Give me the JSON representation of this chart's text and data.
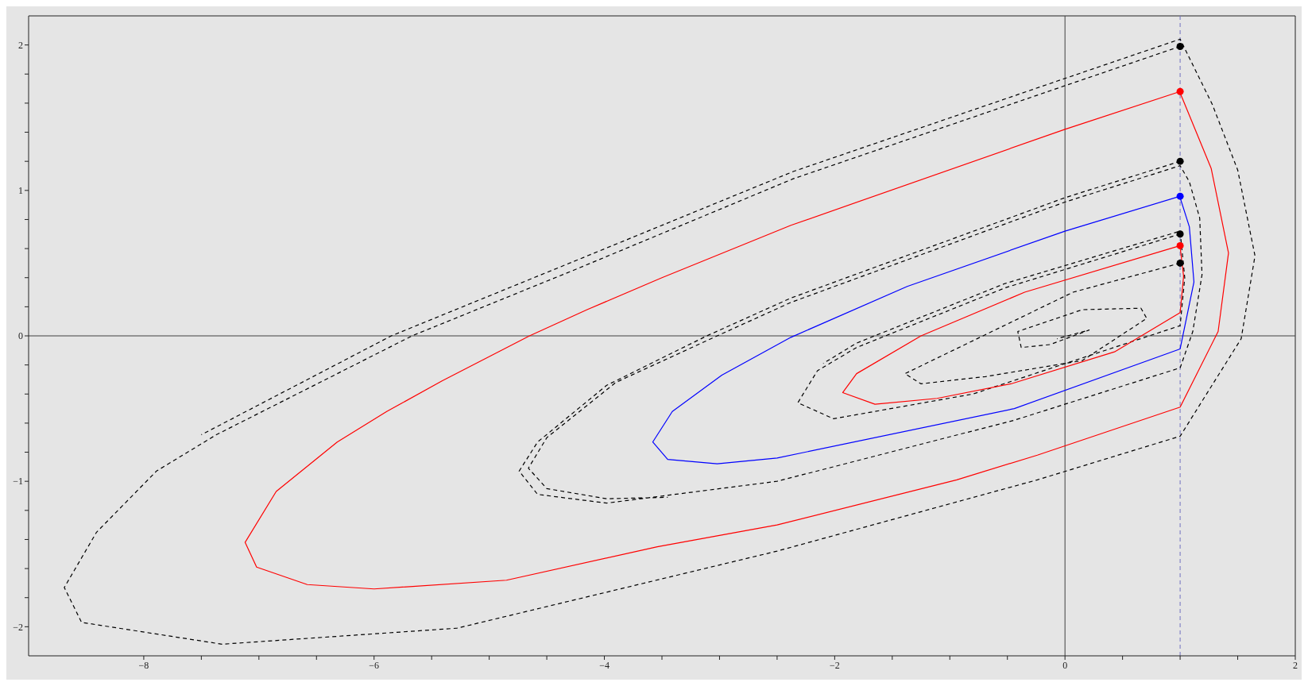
{
  "chart_data": {
    "type": "line",
    "xlim": [
      -9,
      2
    ],
    "ylim": [
      -2.2,
      2.2
    ],
    "xticks": [
      {
        "value": -8,
        "label": "−8"
      },
      {
        "value": -7.5,
        "label": null
      },
      {
        "value": -7,
        "label": null
      },
      {
        "value": -6.5,
        "label": null
      },
      {
        "value": -6,
        "label": "−6"
      },
      {
        "value": -5.5,
        "label": null
      },
      {
        "value": -5,
        "label": null
      },
      {
        "value": -4.5,
        "label": null
      },
      {
        "value": -4,
        "label": "−4"
      },
      {
        "value": -3.5,
        "label": null
      },
      {
        "value": -3,
        "label": null
      },
      {
        "value": -2.5,
        "label": null
      },
      {
        "value": -2,
        "label": "−2"
      },
      {
        "value": -1.5,
        "label": null
      },
      {
        "value": -1,
        "label": null
      },
      {
        "value": -0.5,
        "label": null
      },
      0,
      {
        "value": 0.5,
        "label": null
      },
      {
        "value": 1,
        "label": null
      },
      {
        "value": 1.5,
        "label": null
      },
      2
    ],
    "yticks": [
      {
        "value": -2,
        "label": "−2"
      },
      {
        "value": -1.8,
        "label": null
      },
      {
        "value": -1.6,
        "label": null
      },
      {
        "value": -1.4,
        "label": null
      },
      {
        "value": -1.2,
        "label": null
      },
      {
        "value": -1,
        "label": "−1"
      },
      {
        "value": -0.8,
        "label": null
      },
      {
        "value": -0.6,
        "label": null
      },
      {
        "value": -0.4,
        "label": null
      },
      {
        "value": -0.2,
        "label": null
      },
      0,
      {
        "value": 0.2,
        "label": null
      },
      {
        "value": 0.4,
        "label": null
      },
      {
        "value": 0.6,
        "label": null
      },
      {
        "value": 0.8,
        "label": null
      },
      1,
      {
        "value": 1.2,
        "label": null
      },
      {
        "value": 1.4,
        "label": null
      },
      {
        "value": 1.6,
        "label": null
      },
      {
        "value": 1.8,
        "label": null
      },
      2
    ],
    "grid": false,
    "legend": false,
    "ref_lines": [
      {
        "axis": "x",
        "value": 0,
        "color": "#404040",
        "line_style": "solid"
      },
      {
        "axis": "y",
        "value": 0,
        "color": "#404040",
        "line_style": "solid"
      },
      {
        "axis": "x",
        "value": 1,
        "color": "#7070c0",
        "line_style": "dashed"
      }
    ],
    "series": [
      {
        "color": "#000000",
        "line_style": "dashed",
        "x": [
          1,
          0,
          -2.36,
          -4.24,
          -5.67,
          -7.37,
          -7.89,
          -8.41,
          -8.69,
          -8.54,
          -7.32,
          -5.28,
          -2.5,
          -0.24,
          1,
          1.53,
          1.65,
          1.5,
          1.28,
          1,
          0,
          -2.36,
          -4.24,
          -5.85,
          -7.5
        ],
        "values": [
          1.99,
          1.72,
          1.08,
          0.46,
          0,
          -0.68,
          -0.93,
          -1.35,
          -1.73,
          -1.97,
          -2.12,
          -2.01,
          -1.48,
          -0.99,
          -0.69,
          -0.02,
          0.55,
          1.14,
          1.59,
          2.04,
          1.77,
          1.13,
          0.52,
          0,
          -0.68
        ]
      },
      {
        "color": "#ff0000",
        "line_style": "solid",
        "x": [
          1,
          0,
          -2.38,
          -3.5,
          -4.15,
          -4.65,
          -5.41,
          -5.89,
          -6.32,
          -6.85,
          -7.12,
          -7.02,
          -6.58,
          -6,
          -4.85,
          -3.54,
          -2.5,
          -0.94,
          -0.24,
          1,
          1.33,
          1.42,
          1.27,
          1
        ],
        "values": [
          1.68,
          1.42,
          0.76,
          0.4,
          0.18,
          0,
          -0.31,
          -0.52,
          -0.73,
          -1.07,
          -1.42,
          -1.59,
          -1.71,
          -1.74,
          -1.68,
          -1.45,
          -1.3,
          -0.99,
          -0.82,
          -0.49,
          0.03,
          0.57,
          1.15,
          1.67
        ]
      },
      {
        "color": "#000000",
        "line_style": "dashed",
        "x": [
          1,
          0,
          -2.38,
          -3.11,
          -3.98,
          -4.58,
          -4.74,
          -4.58,
          -3.98,
          -2.5,
          -0.44,
          1,
          1.11,
          1.19,
          1.17,
          1.08,
          1,
          0,
          -2.38,
          -3.02,
          -3.9,
          -4.5,
          -4.66,
          -4.5,
          -3.98,
          -3.45
        ],
        "values": [
          1.2,
          0.95,
          0.26,
          0,
          -0.34,
          -0.73,
          -0.93,
          -1.09,
          -1.15,
          -1,
          -0.58,
          -0.22,
          0.03,
          0.42,
          0.81,
          1.06,
          1.17,
          0.92,
          0.23,
          0,
          -0.32,
          -0.7,
          -0.91,
          -1.05,
          -1.12,
          -1.11
        ]
      },
      {
        "color": "#0000ff",
        "line_style": "solid",
        "x": [
          1,
          0,
          -1.37,
          -2.38,
          -2.98,
          -3.41,
          -3.58,
          -3.45,
          -3.02,
          -2.5,
          -0.44,
          1,
          1.12,
          1.08,
          1
        ],
        "values": [
          0.96,
          0.72,
          0.34,
          -0.01,
          -0.27,
          -0.52,
          -0.73,
          -0.85,
          -0.88,
          -0.84,
          -0.5,
          -0.09,
          0.37,
          0.75,
          0.95
        ]
      },
      {
        "color": "#000000",
        "line_style": "dashed",
        "x": [
          1,
          -0.52,
          -1.81,
          -2.15,
          -2.32,
          -2.01,
          -0.8,
          1,
          1.04,
          1,
          -0.52,
          -1.81,
          -2.1
        ],
        "values": [
          0.7,
          0.33,
          -0.08,
          -0.24,
          -0.46,
          -0.57,
          -0.4,
          0.07,
          0.4,
          0.72,
          0.36,
          -0.05,
          -0.19
        ]
      },
      {
        "color": "#ff0000",
        "line_style": "solid",
        "x": [
          1,
          -0.35,
          -1.25,
          -1.81,
          -1.93,
          -1.65,
          -1.11,
          -0.47,
          0.43,
          1,
          1.03,
          1
        ],
        "values": [
          0.62,
          0.3,
          0,
          -0.26,
          -0.39,
          -0.47,
          -0.43,
          -0.33,
          -0.11,
          0.16,
          0.41,
          0.61
        ]
      },
      {
        "color": "#000000",
        "line_style": "dashed",
        "x": [
          1,
          0.07,
          -1.39,
          -1.25,
          -0.69,
          0.15,
          0.71,
          0.66,
          0.15,
          -0.41,
          -0.38,
          -0.13,
          0.21,
          -0.07
        ],
        "values": [
          0.5,
          0.3,
          -0.26,
          -0.33,
          -0.28,
          -0.17,
          0.12,
          0.19,
          0.18,
          0.03,
          -0.08,
          -0.06,
          0.04,
          -0.02
        ]
      },
      {
        "type": "scatter",
        "marker": "circle",
        "x": [
          1,
          1,
          1,
          1,
          1,
          1,
          1
        ],
        "values": [
          1.99,
          1.68,
          1.2,
          0.96,
          0.7,
          0.62,
          0.5
        ],
        "colors": [
          "#000000",
          "#ff0000",
          "#000000",
          "#0000ff",
          "#000000",
          "#ff0000",
          "#000000"
        ]
      }
    ]
  }
}
